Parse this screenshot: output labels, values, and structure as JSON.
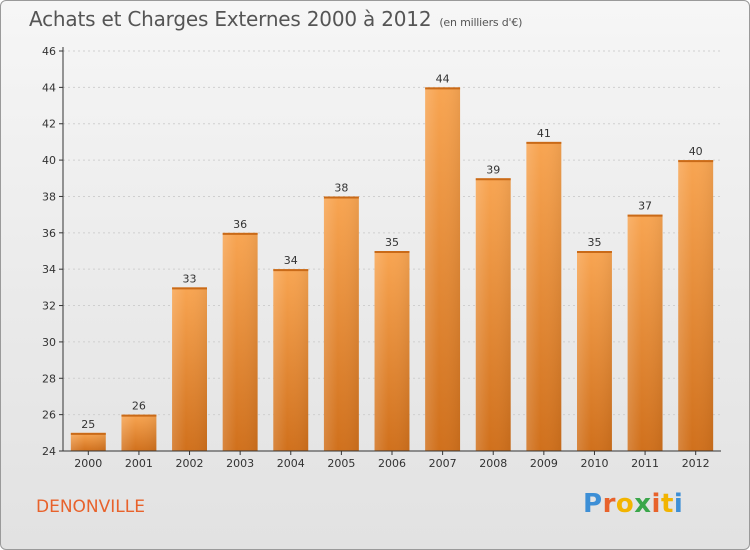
{
  "header": {
    "title": "Achats et Charges Externes 2000 à 2012",
    "subtitle": "(en milliers d'€)"
  },
  "footer": {
    "commune": "DENONVILLE",
    "brand": "Proxiti",
    "brand_colors": [
      "#3d8fd6",
      "#e8622b",
      "#f2b400",
      "#3aa64a",
      "#e8622b",
      "#f2b400",
      "#3d8fd6"
    ]
  },
  "colors": {
    "bar_light": "#f8a552",
    "bar_dark": "#d0701c",
    "grid": "#cfcfcf",
    "axis": "#333333"
  },
  "chart_data": {
    "type": "bar",
    "title": "Achats et Charges Externes 2000 à 2012",
    "subtitle": "(en milliers d'€)",
    "categories": [
      "2000",
      "2001",
      "2002",
      "2003",
      "2004",
      "2005",
      "2006",
      "2007",
      "2008",
      "2009",
      "2010",
      "2011",
      "2012"
    ],
    "values": [
      25,
      26,
      33,
      36,
      34,
      38,
      35,
      44,
      39,
      41,
      35,
      37,
      40
    ],
    "ylim": [
      24,
      46
    ],
    "yticks": [
      24,
      26,
      28,
      30,
      32,
      34,
      36,
      38,
      40,
      42,
      44,
      46
    ],
    "grid": true,
    "xlabel": "",
    "ylabel": ""
  }
}
